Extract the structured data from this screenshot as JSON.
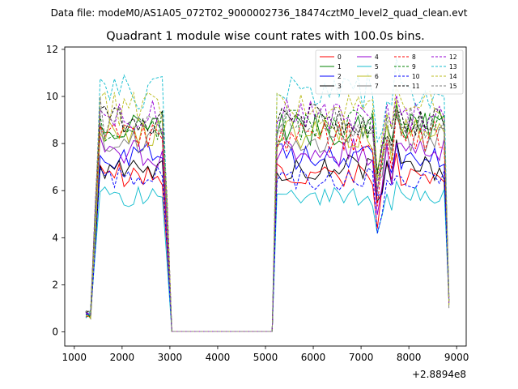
{
  "figure": {
    "suptitle": "Data file: modeM0/AS1A05_072T02_9000002736_18474cztM0_level2_quad_clean.evt"
  },
  "chart_data": {
    "type": "line",
    "title": "Quadrant 1 module wise count rates with 100.0s bins.",
    "xlabel": "",
    "ylabel": "",
    "x_offset_label": "+2.8894e8",
    "xlim": [
      800,
      9200
    ],
    "ylim": [
      -0.6,
      12.1
    ],
    "xticks": [
      1000,
      2000,
      3000,
      4000,
      5000,
      6000,
      7000,
      8000,
      9000
    ],
    "xtick_labels": [
      "1000",
      "2000",
      "3000",
      "4000",
      "5000",
      "6000",
      "7000",
      "8000",
      "9000"
    ],
    "yticks": [
      0,
      2,
      4,
      6,
      8,
      10,
      12
    ],
    "ytick_labels": [
      "0",
      "2",
      "4",
      "6",
      "8",
      "10",
      "12"
    ],
    "grid": false,
    "legend_position": "top-right",
    "series": [
      {
        "name": "0",
        "color": "#ff0000",
        "dash": "solid",
        "base": 6.7
      },
      {
        "name": "1",
        "color": "#008000",
        "dash": "solid",
        "base": 8.6
      },
      {
        "name": "2",
        "color": "#0000ff",
        "dash": "solid",
        "base": 7.5
      },
      {
        "name": "3",
        "color": "#000000",
        "dash": "solid",
        "base": 7.0
      },
      {
        "name": "4",
        "color": "#9400d3",
        "dash": "solid",
        "base": 7.6
      },
      {
        "name": "5",
        "color": "#17becf",
        "dash": "solid",
        "base": 5.7
      },
      {
        "name": "6",
        "color": "#bcbd22",
        "dash": "solid",
        "base": 8.4
      },
      {
        "name": "7",
        "color": "#7f7f7f",
        "dash": "solid",
        "base": 8.2
      },
      {
        "name": "8",
        "color": "#ff0000",
        "dash": "dashed",
        "base": 8.3
      },
      {
        "name": "9",
        "color": "#008000",
        "dash": "dashed",
        "base": 8.8
      },
      {
        "name": "10",
        "color": "#0000ff",
        "dash": "dashed",
        "base": 6.5
      },
      {
        "name": "11",
        "color": "#000000",
        "dash": "dashed",
        "base": 9.0
      },
      {
        "name": "12",
        "color": "#9400d3",
        "dash": "dashed",
        "base": 9.2
      },
      {
        "name": "13",
        "color": "#17becf",
        "dash": "dashed",
        "base": 10.2
      },
      {
        "name": "14",
        "color": "#bcbd22",
        "dash": "dashed",
        "base": 9.5
      },
      {
        "name": "15",
        "color": "#7f7f7f",
        "dash": "dashed",
        "base": 8.9
      }
    ]
  }
}
